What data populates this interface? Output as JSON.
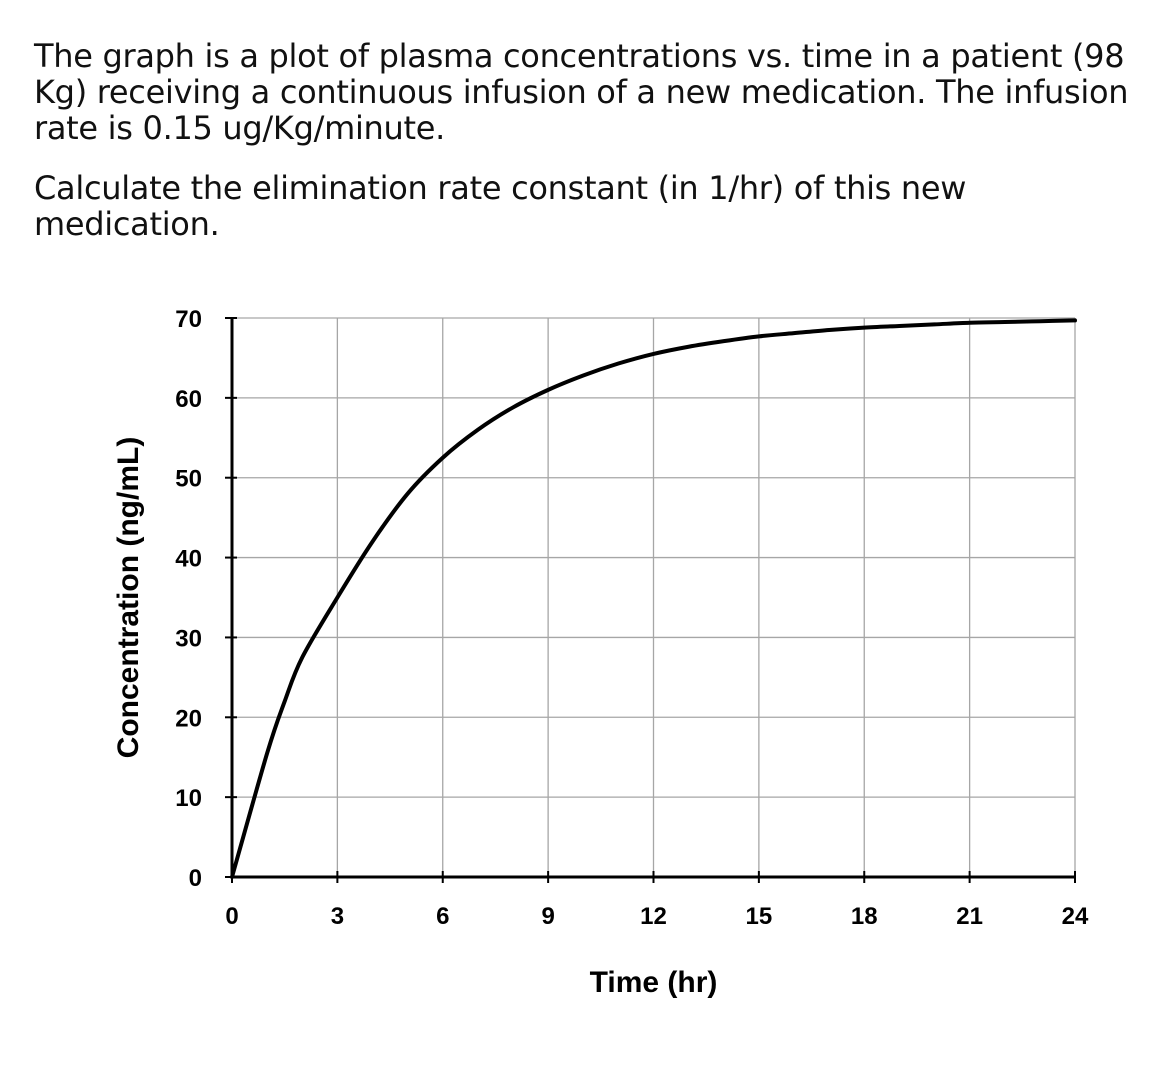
{
  "question": {
    "paragraph1": "The graph is a plot of plasma concentrations vs. time in a patient (98 Kg) receiving a continuous infusion of a new medication.  The infusion rate is 0.15 ug/Kg/minute.",
    "paragraph2": "Calculate the elimination rate constant (in 1/hr) of this new medication."
  },
  "chart_data": {
    "type": "line",
    "title": "",
    "xlabel": "Time (hr)",
    "ylabel": "Concentration (ng/mL)",
    "xlim": [
      0,
      24
    ],
    "ylim": [
      0,
      70
    ],
    "x_ticks": [
      0,
      3,
      6,
      9,
      12,
      15,
      18,
      21,
      24
    ],
    "y_ticks": [
      0,
      10,
      20,
      30,
      40,
      50,
      60,
      70
    ],
    "grid": true,
    "legend": "none",
    "series": [
      {
        "color": "#000000",
        "x": [
          0,
          1,
          1.5,
          2,
          3,
          4,
          5,
          6,
          7,
          8,
          9,
          10,
          11,
          12,
          13,
          14,
          15,
          16,
          17,
          18,
          19,
          20,
          21,
          22,
          23,
          24
        ],
        "y": [
          0,
          15.5,
          22,
          27.5,
          35,
          42,
          48,
          52.5,
          56,
          58.8,
          61,
          62.8,
          64.3,
          65.5,
          66.4,
          67.1,
          67.7,
          68.1,
          68.5,
          68.8,
          69.0,
          69.2,
          69.4,
          69.5,
          69.6,
          69.7
        ]
      }
    ]
  }
}
